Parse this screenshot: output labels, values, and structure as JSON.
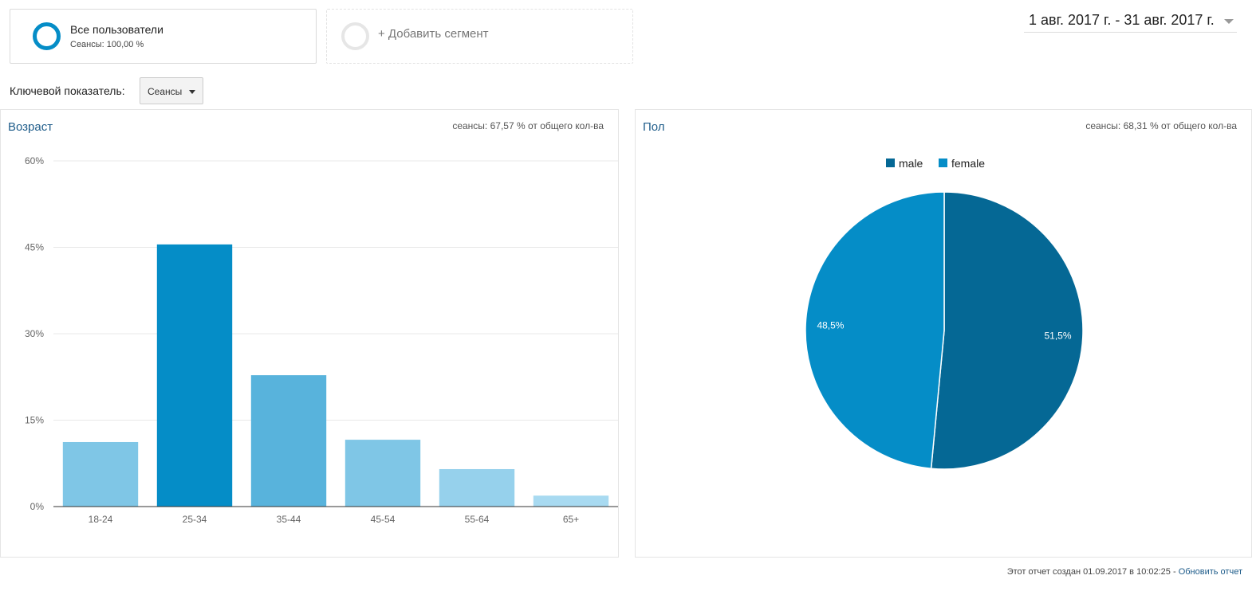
{
  "segment": {
    "title": "Все пользователи",
    "subtitle": "Сеансы: 100,00 %",
    "add_label": "+ Добавить сегмент"
  },
  "date_range": "1 авг. 2017 г. - 31 авг. 2017 г.",
  "metric": {
    "label": "Ключевой показатель:",
    "value": "Сеансы"
  },
  "age_panel": {
    "title": "Возраст",
    "share": "сеансы: 67,57 % от общего кол-ва"
  },
  "gender_panel": {
    "title": "Пол",
    "share": "сеансы: 68,31 % от общего кол-ва"
  },
  "footer": {
    "text": "Этот отчет создан 01.09.2017 в 10:02:25 - ",
    "link": "Обновить отчет"
  },
  "chart_data": [
    {
      "type": "bar",
      "title": "Возраст",
      "categories": [
        "18-24",
        "25-34",
        "35-44",
        "45-54",
        "55-64",
        "65+"
      ],
      "values": [
        11.2,
        45.5,
        22.8,
        11.6,
        6.5,
        1.9
      ],
      "colors": [
        "#7fc6e6",
        "#058dc7",
        "#58b3dc",
        "#7fc6e6",
        "#96d1ec",
        "#a8daf1"
      ],
      "ylim": [
        0,
        60
      ],
      "yticks": [
        0,
        15,
        30,
        45,
        60
      ],
      "ytick_labels": [
        "0%",
        "15%",
        "30%",
        "45%",
        "60%"
      ],
      "grid": true
    },
    {
      "type": "pie",
      "title": "Пол",
      "series": [
        {
          "name": "male",
          "value": 51.5,
          "label": "51,5%",
          "color": "#056895"
        },
        {
          "name": "female",
          "value": 48.5,
          "label": "48,5%",
          "color": "#058dc7"
        }
      ],
      "legend": "top"
    }
  ]
}
